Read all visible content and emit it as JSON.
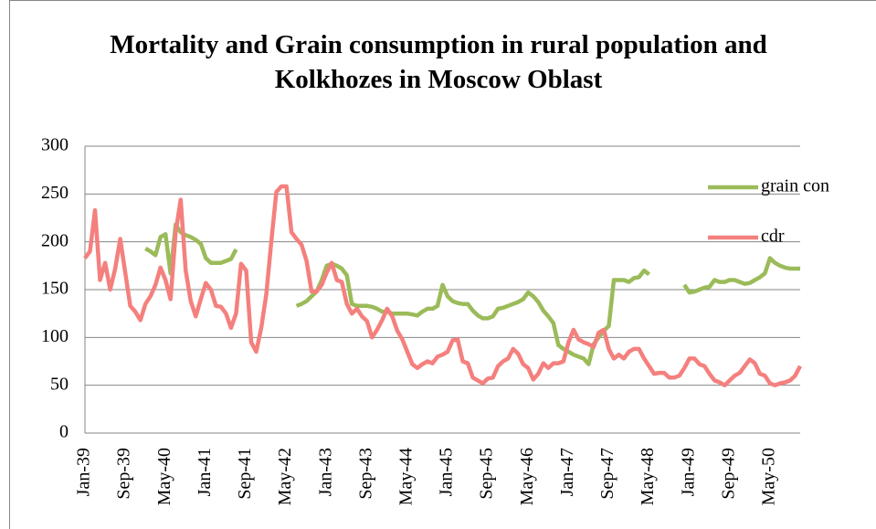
{
  "chart_data": {
    "type": "line",
    "title": "Mortality and Grain consumption in rural population and Kolkhozes in Moscow Oblast",
    "categories": [
      "Jan-39",
      null,
      null,
      null,
      null,
      null,
      null,
      null,
      "Sep-39",
      null,
      null,
      null,
      null,
      null,
      null,
      null,
      "May-40",
      null,
      null,
      null,
      null,
      null,
      null,
      null,
      "Jan-41",
      null,
      null,
      null,
      null,
      null,
      null,
      null,
      "Sep-41",
      null,
      null,
      null,
      null,
      null,
      null,
      null,
      "May-42",
      null,
      null,
      null,
      null,
      null,
      null,
      null,
      "Jan-43",
      null,
      null,
      null,
      null,
      null,
      null,
      null,
      "Sep-43",
      null,
      null,
      null,
      null,
      null,
      null,
      null,
      "May-44",
      null,
      null,
      null,
      null,
      null,
      null,
      null,
      "Jan-45",
      null,
      null,
      null,
      null,
      null,
      null,
      null,
      "Sep-45",
      null,
      null,
      null,
      null,
      null,
      null,
      null,
      "May-46",
      null,
      null,
      null,
      null,
      null,
      null,
      null,
      "Jan-47",
      null,
      null,
      null,
      null,
      null,
      null,
      null,
      "Sep-47",
      null,
      null,
      null,
      null,
      null,
      null,
      null,
      "May-48",
      null,
      null,
      null,
      null,
      null,
      null,
      null,
      "Jan-49",
      null,
      null,
      null,
      null,
      null,
      null,
      null,
      "Sep-49",
      null,
      null,
      null,
      null,
      null,
      null,
      null,
      "May-50",
      null,
      null,
      null,
      null,
      null,
      null
    ],
    "series": [
      {
        "name": "grain con",
        "color": "#9bbb59",
        "values": [
          null,
          null,
          null,
          null,
          null,
          null,
          null,
          null,
          null,
          null,
          null,
          null,
          193,
          190,
          186,
          205,
          208,
          167,
          218,
          210,
          207,
          205,
          202,
          198,
          183,
          178,
          178,
          178,
          180,
          182,
          192,
          null,
          null,
          null,
          null,
          null,
          null,
          null,
          null,
          null,
          null,
          null,
          133,
          135,
          138,
          143,
          148,
          160,
          175,
          177,
          175,
          172,
          165,
          135,
          133,
          133,
          133,
          132,
          130,
          127,
          127,
          125,
          125,
          125,
          125,
          124,
          123,
          127,
          130,
          130,
          133,
          155,
          143,
          138,
          136,
          135,
          135,
          128,
          123,
          120,
          120,
          122,
          130,
          131,
          133,
          135,
          137,
          140,
          147,
          143,
          137,
          128,
          122,
          115,
          92,
          88,
          85,
          82,
          80,
          78,
          72,
          93,
          100,
          107,
          112,
          160,
          160,
          160,
          158,
          162,
          163,
          170,
          166,
          null,
          null,
          null,
          null,
          null,
          null,
          155,
          147,
          148,
          150,
          152,
          153,
          160,
          158,
          158,
          160,
          160,
          158,
          156,
          157,
          160,
          163,
          167,
          183,
          178,
          175,
          173,
          172,
          172,
          172
        ]
      },
      {
        "name": "cdr",
        "color": "#f4807e",
        "values": [
          183,
          190,
          233,
          160,
          178,
          150,
          172,
          203,
          168,
          133,
          127,
          118,
          135,
          143,
          155,
          173,
          160,
          140,
          210,
          244,
          170,
          138,
          122,
          140,
          157,
          150,
          133,
          132,
          125,
          110,
          125,
          177,
          170,
          95,
          85,
          110,
          145,
          200,
          252,
          258,
          258,
          210,
          203,
          197,
          180,
          148,
          148,
          155,
          168,
          178,
          160,
          158,
          135,
          125,
          130,
          122,
          117,
          100,
          108,
          118,
          130,
          122,
          107,
          98,
          85,
          72,
          68,
          72,
          75,
          73,
          80,
          82,
          85,
          97,
          98,
          75,
          73,
          58,
          55,
          52,
          57,
          58,
          70,
          75,
          78,
          88,
          83,
          72,
          68,
          56,
          62,
          73,
          68,
          73,
          73,
          75,
          95,
          108,
          98,
          95,
          93,
          90,
          105,
          108,
          88,
          78,
          82,
          78,
          85,
          88,
          88,
          78,
          70,
          62,
          63,
          63,
          58,
          58,
          60,
          68,
          78,
          78,
          72,
          70,
          62,
          55,
          53,
          50,
          55,
          60,
          63,
          70,
          77,
          73,
          62,
          60,
          52,
          50,
          52,
          53,
          55,
          60,
          70
        ]
      }
    ],
    "ylim": [
      0,
      300
    ],
    "yticks": [
      0,
      50,
      100,
      150,
      200,
      250,
      300
    ],
    "grid": true,
    "legend": "right"
  }
}
